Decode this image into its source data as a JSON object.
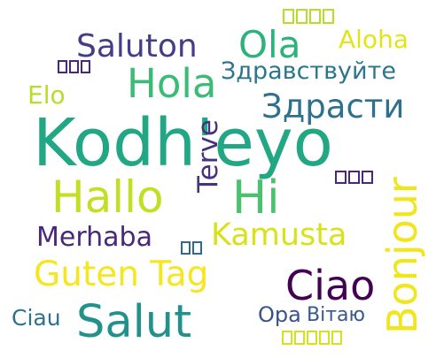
{
  "words": [
    {
      "text": "Kodh'eyo",
      "color": "#22a785"
    },
    {
      "text": "Saluton",
      "color": "#433e85"
    },
    {
      "text": "Ola",
      "color": "#2db27d"
    },
    {
      "text": "Aloha",
      "color": "#e2e418"
    },
    {
      "text": "Hola",
      "color": "#3bbb75"
    },
    {
      "text": "Здравствуйте",
      "color": "#2b768e"
    },
    {
      "text": "Здрасти",
      "color": "#2d718e"
    },
    {
      "text": "Elo",
      "color": "#b5de2b"
    },
    {
      "text": "Terve",
      "color": "#46327e"
    },
    {
      "text": "Hallo",
      "color": "#c2df23"
    },
    {
      "text": "Hi",
      "color": "#4ac16d"
    },
    {
      "text": "Bonjour",
      "color": "#f1e51d"
    },
    {
      "text": "Merhaba",
      "color": "#482878"
    },
    {
      "text": "Kamusta",
      "color": "#d8e219"
    },
    {
      "text": "Guten Tag",
      "color": "#f6e620"
    },
    {
      "text": "Ciao",
      "color": "#440154"
    },
    {
      "text": "Salut",
      "color": "#21918c"
    },
    {
      "text": "Ciau",
      "color": "#2c728e"
    },
    {
      "text": "Opa",
      "color": "#3b528b"
    },
    {
      "text": "Вітаю",
      "color": "#38598c"
    }
  ],
  "glyph_boxes": [
    {
      "count": 4,
      "color": "#b5de2b"
    },
    {
      "count": 3,
      "color": "#482878"
    },
    {
      "count": 3,
      "color": "#482878"
    },
    {
      "count": 2,
      "color": "#31688e"
    },
    {
      "count": 5,
      "color": "#d2e21b"
    }
  ]
}
